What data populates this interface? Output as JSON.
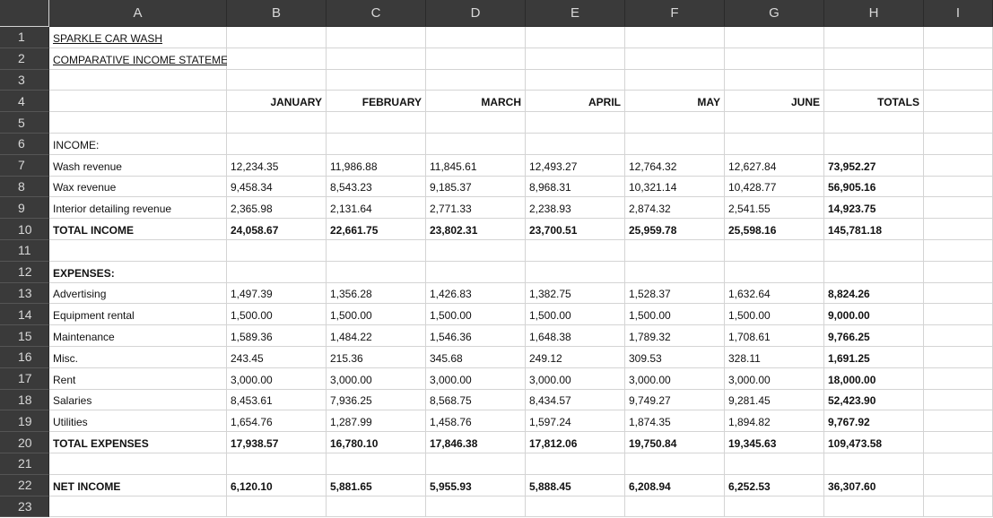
{
  "columns": [
    "A",
    "B",
    "C",
    "D",
    "E",
    "F",
    "G",
    "H",
    "I"
  ],
  "rows": [
    {
      "num": "1",
      "cells": [
        {
          "t": "SPARKLE CAR WASH",
          "ul": true
        }
      ]
    },
    {
      "num": "2",
      "cells": [
        {
          "t": "COMPARATIVE INCOME STATEMENT",
          "ul": true
        }
      ]
    },
    {
      "num": "3",
      "cells": []
    },
    {
      "num": "4",
      "cells": [
        {
          "t": ""
        },
        {
          "t": "JANUARY",
          "b": true,
          "r": true
        },
        {
          "t": "FEBRUARY",
          "b": true,
          "r": true
        },
        {
          "t": "MARCH",
          "b": true,
          "r": true
        },
        {
          "t": "APRIL",
          "b": true,
          "r": true
        },
        {
          "t": "MAY",
          "b": true,
          "r": true
        },
        {
          "t": "JUNE",
          "b": true,
          "r": true
        },
        {
          "t": "TOTALS",
          "b": true,
          "r": true
        }
      ]
    },
    {
      "num": "5",
      "cells": []
    },
    {
      "num": "6",
      "cells": [
        {
          "t": "INCOME:"
        }
      ]
    },
    {
      "num": "7",
      "cells": [
        {
          "t": "Wash revenue"
        },
        {
          "t": "12,234.35"
        },
        {
          "t": "11,986.88"
        },
        {
          "t": "11,845.61"
        },
        {
          "t": "12,493.27"
        },
        {
          "t": "12,764.32"
        },
        {
          "t": "12,627.84"
        },
        {
          "t": "73,952.27",
          "b": true
        }
      ]
    },
    {
      "num": "8",
      "cells": [
        {
          "t": "Wax revenue"
        },
        {
          "t": "9,458.34"
        },
        {
          "t": "8,543.23"
        },
        {
          "t": "9,185.37"
        },
        {
          "t": "8,968.31"
        },
        {
          "t": "10,321.14"
        },
        {
          "t": "10,428.77"
        },
        {
          "t": "56,905.16",
          "b": true
        }
      ]
    },
    {
      "num": "9",
      "cells": [
        {
          "t": "Interior detailing revenue"
        },
        {
          "t": "2,365.98"
        },
        {
          "t": "2,131.64"
        },
        {
          "t": "2,771.33"
        },
        {
          "t": "2,238.93"
        },
        {
          "t": "2,874.32"
        },
        {
          "t": "2,541.55"
        },
        {
          "t": "14,923.75",
          "b": true
        }
      ]
    },
    {
      "num": "10",
      "cells": [
        {
          "t": "TOTAL INCOME",
          "b": true
        },
        {
          "t": "24,058.67",
          "b": true
        },
        {
          "t": "22,661.75",
          "b": true
        },
        {
          "t": "23,802.31",
          "b": true
        },
        {
          "t": "23,700.51",
          "b": true
        },
        {
          "t": "25,959.78",
          "b": true
        },
        {
          "t": "25,598.16",
          "b": true
        },
        {
          "t": "145,781.18",
          "b": true
        }
      ]
    },
    {
      "num": "11",
      "cells": []
    },
    {
      "num": "12",
      "cells": [
        {
          "t": "EXPENSES:",
          "b": true
        }
      ]
    },
    {
      "num": "13",
      "cells": [
        {
          "t": "Advertising"
        },
        {
          "t": "1,497.39"
        },
        {
          "t": "1,356.28"
        },
        {
          "t": "1,426.83"
        },
        {
          "t": "1,382.75"
        },
        {
          "t": "1,528.37"
        },
        {
          "t": "1,632.64"
        },
        {
          "t": "8,824.26",
          "b": true
        }
      ]
    },
    {
      "num": "14",
      "cells": [
        {
          "t": "Equipment rental"
        },
        {
          "t": "1,500.00"
        },
        {
          "t": "1,500.00"
        },
        {
          "t": "1,500.00"
        },
        {
          "t": "1,500.00"
        },
        {
          "t": "1,500.00"
        },
        {
          "t": "1,500.00"
        },
        {
          "t": "9,000.00",
          "b": true
        }
      ]
    },
    {
      "num": "15",
      "cells": [
        {
          "t": "Maintenance"
        },
        {
          "t": "1,589.36"
        },
        {
          "t": "1,484.22"
        },
        {
          "t": "1,546.36"
        },
        {
          "t": "1,648.38"
        },
        {
          "t": "1,789.32"
        },
        {
          "t": "1,708.61"
        },
        {
          "t": "9,766.25",
          "b": true
        }
      ]
    },
    {
      "num": "16",
      "cells": [
        {
          "t": "Misc."
        },
        {
          "t": "243.45"
        },
        {
          "t": "215.36"
        },
        {
          "t": "345.68"
        },
        {
          "t": "249.12"
        },
        {
          "t": "309.53"
        },
        {
          "t": "328.11"
        },
        {
          "t": "1,691.25",
          "b": true
        }
      ]
    },
    {
      "num": "17",
      "cells": [
        {
          "t": "Rent"
        },
        {
          "t": "3,000.00"
        },
        {
          "t": "3,000.00"
        },
        {
          "t": "3,000.00"
        },
        {
          "t": "3,000.00"
        },
        {
          "t": "3,000.00"
        },
        {
          "t": "3,000.00"
        },
        {
          "t": "18,000.00",
          "b": true
        }
      ]
    },
    {
      "num": "18",
      "cells": [
        {
          "t": "Salaries"
        },
        {
          "t": "8,453.61"
        },
        {
          "t": "7,936.25"
        },
        {
          "t": "8,568.75"
        },
        {
          "t": "8,434.57"
        },
        {
          "t": "9,749.27"
        },
        {
          "t": "9,281.45"
        },
        {
          "t": "52,423.90",
          "b": true
        }
      ]
    },
    {
      "num": "19",
      "cells": [
        {
          "t": "Utilities"
        },
        {
          "t": "1,654.76"
        },
        {
          "t": "1,287.99"
        },
        {
          "t": "1,458.76"
        },
        {
          "t": "1,597.24"
        },
        {
          "t": "1,874.35"
        },
        {
          "t": "1,894.82"
        },
        {
          "t": "9,767.92",
          "b": true
        }
      ]
    },
    {
      "num": "20",
      "cells": [
        {
          "t": "TOTAL EXPENSES",
          "b": true
        },
        {
          "t": "17,938.57",
          "b": true
        },
        {
          "t": "16,780.10",
          "b": true
        },
        {
          "t": "17,846.38",
          "b": true
        },
        {
          "t": "17,812.06",
          "b": true
        },
        {
          "t": "19,750.84",
          "b": true
        },
        {
          "t": "19,345.63",
          "b": true
        },
        {
          "t": "109,473.58",
          "b": true
        }
      ]
    },
    {
      "num": "21",
      "cells": []
    },
    {
      "num": "22",
      "cells": [
        {
          "t": "NET INCOME",
          "b": true
        },
        {
          "t": "6,120.10",
          "b": true
        },
        {
          "t": "5,881.65",
          "b": true
        },
        {
          "t": "5,955.93",
          "b": true
        },
        {
          "t": "5,888.45",
          "b": true
        },
        {
          "t": "6,208.94",
          "b": true
        },
        {
          "t": "6,252.53",
          "b": true
        },
        {
          "t": "36,307.60",
          "b": true
        }
      ]
    },
    {
      "num": "23",
      "cells": []
    }
  ]
}
